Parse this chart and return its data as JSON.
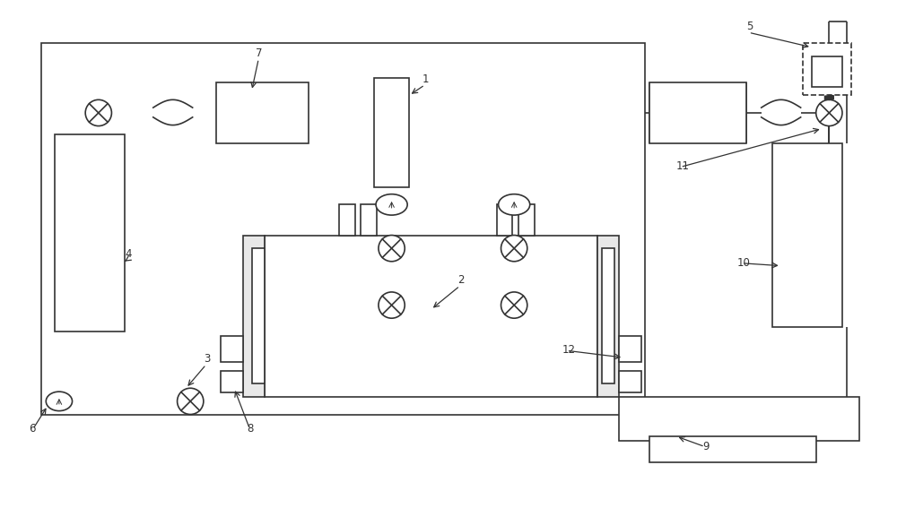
{
  "bg_color": "#ffffff",
  "lc": "#333333",
  "lw": 1.2,
  "fig_width": 10.0,
  "fig_height": 5.67,
  "dpi": 100
}
